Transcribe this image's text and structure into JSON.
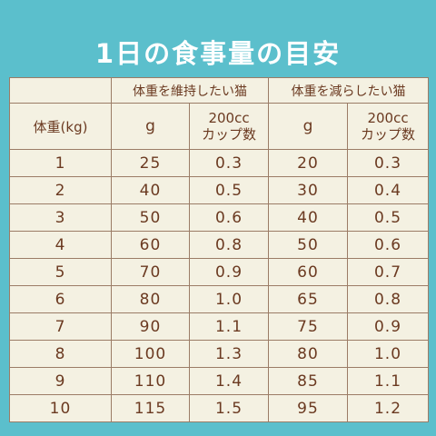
{
  "title": "1日の食事量の目安",
  "table": {
    "group_headers": [
      "体重を維持したい猫",
      "体重を減らしたい猫"
    ],
    "weight_header": "体重(kg)",
    "grams_header": "g",
    "cups_header_line1": "200cc",
    "cups_header_line2": "カップ数",
    "rows": [
      {
        "weight": "1",
        "maintain_g": "25",
        "maintain_cups": "0.3",
        "reduce_g": "20",
        "reduce_cups": "0.3"
      },
      {
        "weight": "2",
        "maintain_g": "40",
        "maintain_cups": "0.5",
        "reduce_g": "30",
        "reduce_cups": "0.4"
      },
      {
        "weight": "3",
        "maintain_g": "50",
        "maintain_cups": "0.6",
        "reduce_g": "40",
        "reduce_cups": "0.5"
      },
      {
        "weight": "4",
        "maintain_g": "60",
        "maintain_cups": "0.8",
        "reduce_g": "50",
        "reduce_cups": "0.6"
      },
      {
        "weight": "5",
        "maintain_g": "70",
        "maintain_cups": "0.9",
        "reduce_g": "60",
        "reduce_cups": "0.7"
      },
      {
        "weight": "6",
        "maintain_g": "80",
        "maintain_cups": "1.0",
        "reduce_g": "65",
        "reduce_cups": "0.8"
      },
      {
        "weight": "7",
        "maintain_g": "90",
        "maintain_cups": "1.1",
        "reduce_g": "75",
        "reduce_cups": "0.9"
      },
      {
        "weight": "8",
        "maintain_g": "100",
        "maintain_cups": "1.3",
        "reduce_g": "80",
        "reduce_cups": "1.0"
      },
      {
        "weight": "9",
        "maintain_g": "110",
        "maintain_cups": "1.4",
        "reduce_g": "85",
        "reduce_cups": "1.1"
      },
      {
        "weight": "10",
        "maintain_g": "115",
        "maintain_cups": "1.5",
        "reduce_g": "95",
        "reduce_cups": "1.2"
      }
    ]
  },
  "colors": {
    "background": "#5bbfcc",
    "table_fill": "#f4f1e2",
    "text": "#6b3a21",
    "title": "#ffffff"
  }
}
